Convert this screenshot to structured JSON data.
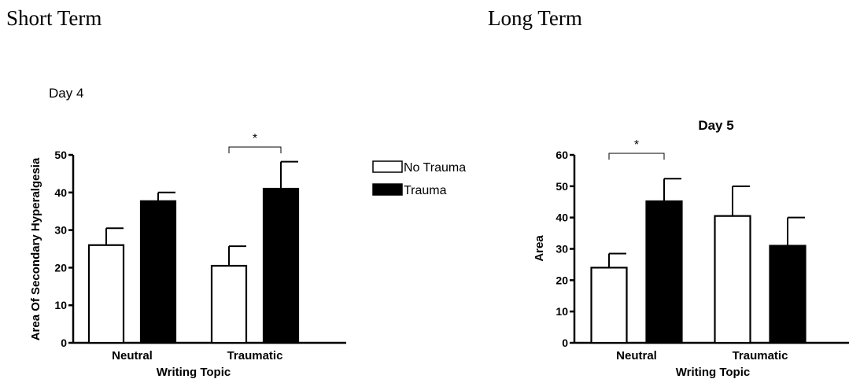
{
  "headings": {
    "left": "Short Term",
    "right": "Long Term"
  },
  "chart_data": [
    {
      "type": "bar",
      "title": "Day 4",
      "xlabel": "Writing Topic",
      "ylabel": "Area Of Secondary Hyperalgesia",
      "categories": [
        "Neutral",
        "Traumatic"
      ],
      "ylim": [
        0,
        50
      ],
      "yticks": [
        "0",
        "10",
        "20",
        "30",
        "40",
        "50"
      ],
      "series": [
        {
          "name": "No Trauma",
          "fill": "#ffffff",
          "values": [
            26,
            20.5
          ],
          "errors": [
            4.5,
            5.2
          ]
        },
        {
          "name": "Trauma",
          "fill": "#000000",
          "values": [
            37.7,
            41
          ],
          "errors": [
            2.3,
            7.2
          ]
        }
      ],
      "legend": [
        "No Trauma",
        "Trauma"
      ],
      "significance": [
        {
          "label": "*",
          "category": "Traumatic"
        }
      ],
      "grid": false
    },
    {
      "type": "bar",
      "title": "Day 5",
      "xlabel": "Writing Topic",
      "ylabel": "Area",
      "categories": [
        "Neutral",
        "Traumatic"
      ],
      "ylim": [
        0,
        60
      ],
      "yticks": [
        "0",
        "10",
        "20",
        "30",
        "40",
        "50",
        "60"
      ],
      "series": [
        {
          "fill": "#ffffff",
          "values": [
            24,
            40.5
          ],
          "errors": [
            4.5,
            9.5
          ]
        },
        {
          "fill": "#000000",
          "values": [
            45.2,
            31
          ],
          "errors": [
            7.2,
            9
          ]
        }
      ],
      "significance": [
        {
          "label": "*",
          "category": "Neutral"
        }
      ],
      "grid": false
    }
  ]
}
